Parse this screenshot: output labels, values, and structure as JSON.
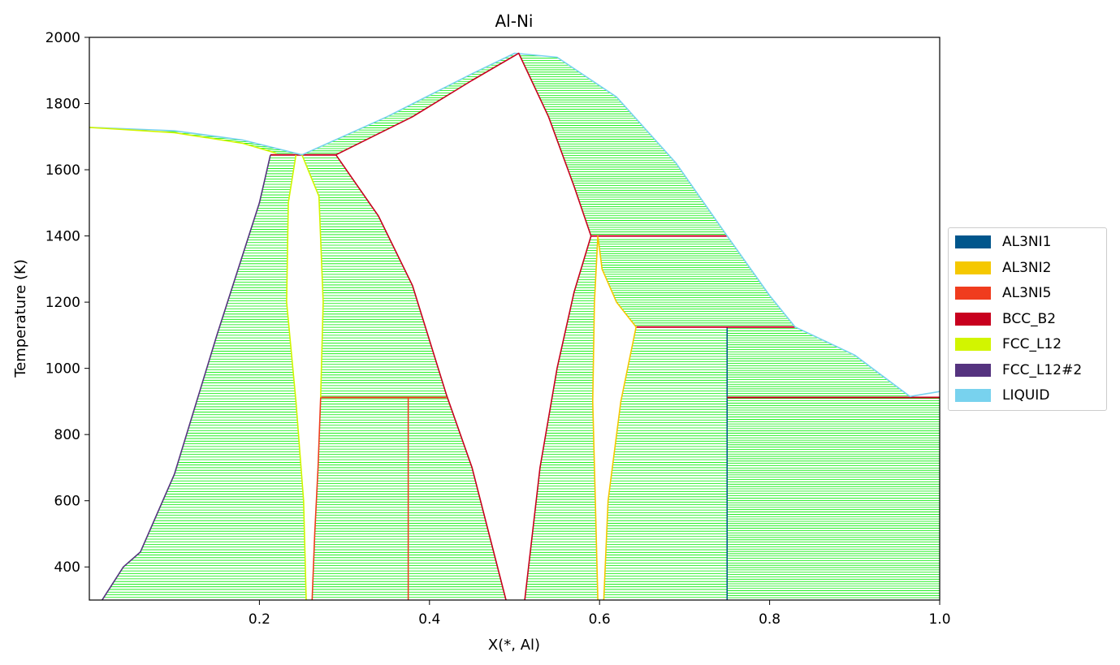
{
  "chart_data": {
    "type": "phase-diagram",
    "title": "Al-Ni",
    "xlabel": "X(*, Al)",
    "ylabel": "Temperature (K)",
    "xlim": [
      0.0,
      1.0
    ],
    "ylim": [
      300,
      2000
    ],
    "xticks": [
      0.2,
      0.4,
      0.6,
      0.8,
      1.0
    ],
    "xtick_labels": [
      "0.2",
      "0.4",
      "0.6",
      "0.8",
      "1.0"
    ],
    "yticks": [
      400,
      600,
      800,
      1000,
      1200,
      1400,
      1600,
      1800,
      2000
    ],
    "ytick_labels": [
      "400",
      "600",
      "800",
      "1000",
      "1200",
      "1400",
      "1600",
      "1800",
      "2000"
    ],
    "grid": false,
    "legend_position": "right",
    "tieline_color": "#00ee00",
    "legend": [
      {
        "name": "AL3NI1",
        "color": "#00568c"
      },
      {
        "name": "AL3NI2",
        "color": "#f5c800"
      },
      {
        "name": "AL3NI5",
        "color": "#f03c1e"
      },
      {
        "name": "BCC_B2",
        "color": "#c8001e"
      },
      {
        "name": "FCC_L12",
        "color": "#d2f500"
      },
      {
        "name": "FCC_L12#2",
        "color": "#55337f"
      },
      {
        "name": "LIQUID",
        "color": "#78d2ee"
      }
    ],
    "boundaries": [
      {
        "phase": "LIQUID",
        "points": [
          [
            0.0,
            1728
          ],
          [
            0.1,
            1718
          ],
          [
            0.18,
            1690
          ],
          [
            0.25,
            1645
          ]
        ]
      },
      {
        "phase": "FCC_L12",
        "points": [
          [
            0.0,
            1728
          ],
          [
            0.1,
            1712
          ],
          [
            0.18,
            1680
          ],
          [
            0.22,
            1650
          ]
        ]
      },
      {
        "phase": "FCC_L12#2",
        "points": [
          [
            0.015,
            300
          ],
          [
            0.04,
            400
          ],
          [
            0.06,
            445
          ],
          [
            0.1,
            680
          ],
          [
            0.15,
            1100
          ],
          [
            0.2,
            1500
          ],
          [
            0.213,
            1645
          ]
        ]
      },
      {
        "phase": "FCC_L12",
        "points": [
          [
            0.243,
            1645
          ],
          [
            0.234,
            1500
          ],
          [
            0.232,
            1200
          ],
          [
            0.243,
            900
          ],
          [
            0.252,
            600
          ],
          [
            0.255,
            300
          ]
        ]
      },
      {
        "phase": "FCC_L12",
        "points": [
          [
            0.25,
            1645
          ],
          [
            0.27,
            1520
          ],
          [
            0.275,
            1200
          ],
          [
            0.272,
            912
          ]
        ]
      },
      {
        "phase": "AL3NI5",
        "points": [
          [
            0.272,
            912
          ],
          [
            0.269,
            700
          ],
          [
            0.265,
            500
          ],
          [
            0.262,
            300
          ]
        ]
      },
      {
        "phase": "BCC_B2",
        "points": [
          [
            0.29,
            1645
          ],
          [
            0.34,
            1460
          ],
          [
            0.38,
            1250
          ],
          [
            0.42,
            920
          ],
          [
            0.45,
            700
          ],
          [
            0.47,
            500
          ],
          [
            0.49,
            300
          ]
        ]
      },
      {
        "phase": "LIQUID",
        "points": [
          [
            0.25,
            1645
          ],
          [
            0.35,
            1760
          ],
          [
            0.45,
            1890
          ],
          [
            0.5,
            1952
          ],
          [
            0.55,
            1940
          ],
          [
            0.62,
            1820
          ],
          [
            0.69,
            1620
          ],
          [
            0.75,
            1400
          ],
          [
            0.8,
            1220
          ],
          [
            0.83,
            1125
          ],
          [
            0.9,
            1040
          ],
          [
            0.965,
            915
          ],
          [
            1.0,
            930
          ]
        ]
      },
      {
        "phase": "BCC_B2",
        "points": [
          [
            0.29,
            1645
          ],
          [
            0.38,
            1760
          ],
          [
            0.45,
            1870
          ],
          [
            0.505,
            1952
          ],
          [
            0.54,
            1760
          ],
          [
            0.57,
            1550
          ],
          [
            0.59,
            1400
          ]
        ]
      },
      {
        "phase": "BCC_B2",
        "points": [
          [
            0.512,
            300
          ],
          [
            0.53,
            700
          ],
          [
            0.55,
            1000
          ],
          [
            0.57,
            1230
          ],
          [
            0.59,
            1400
          ]
        ]
      },
      {
        "phase": "AL3NI2",
        "points": [
          [
            0.598,
            1400
          ],
          [
            0.594,
            1200
          ],
          [
            0.592,
            900
          ],
          [
            0.595,
            600
          ],
          [
            0.598,
            300
          ]
        ]
      },
      {
        "phase": "AL3NI2",
        "points": [
          [
            0.598,
            1400
          ],
          [
            0.603,
            1300
          ],
          [
            0.62,
            1200
          ],
          [
            0.643,
            1125
          ],
          [
            0.625,
            900
          ],
          [
            0.61,
            600
          ],
          [
            0.605,
            300
          ]
        ]
      }
    ],
    "invariant_lines": [
      {
        "phase": "BCC_B2",
        "T": 1645,
        "x": [
          0.213,
          0.29
        ]
      },
      {
        "phase": "BCC_B2",
        "T": 1400,
        "x": [
          0.59,
          0.75
        ]
      },
      {
        "phase": "BCC_B2",
        "T": 1125,
        "x": [
          0.643,
          0.83
        ]
      },
      {
        "phase": "AL3NI5",
        "T": 912,
        "x": [
          0.272,
          0.42
        ]
      },
      {
        "phase": "BCC_B2",
        "T": 912,
        "x": [
          0.75,
          1.0
        ]
      }
    ],
    "compound_lines": [
      {
        "phase": "AL3NI5",
        "x": 0.375,
        "T": [
          300,
          912
        ]
      },
      {
        "phase": "AL3NI1",
        "x": 0.75,
        "T": [
          300,
          1125
        ]
      }
    ],
    "two_phase_regions": [
      {
        "left": [
          [
            0.0,
            1728
          ],
          [
            0.1,
            1712
          ],
          [
            0.18,
            1680
          ],
          [
            0.22,
            1650
          ]
        ],
        "right": [
          [
            0.0,
            1728
          ],
          [
            0.1,
            1718
          ],
          [
            0.18,
            1690
          ],
          [
            0.25,
            1645
          ]
        ],
        "tmin": 1650,
        "tmax": 1720,
        "step": 5
      },
      {
        "left": [
          [
            0.015,
            300
          ],
          [
            0.04,
            400
          ],
          [
            0.06,
            445
          ],
          [
            0.1,
            680
          ],
          [
            0.15,
            1100
          ],
          [
            0.2,
            1500
          ],
          [
            0.213,
            1645
          ]
        ],
        "right": [
          [
            0.255,
            300
          ],
          [
            0.252,
            600
          ],
          [
            0.243,
            900
          ],
          [
            0.232,
            1200
          ],
          [
            0.234,
            1500
          ],
          [
            0.243,
            1645
          ]
        ],
        "tmin": 300,
        "tmax": 1640,
        "step": 8
      },
      {
        "left": [
          [
            0.262,
            300
          ],
          [
            0.265,
            500
          ],
          [
            0.269,
            700
          ],
          [
            0.272,
            912
          ],
          [
            0.275,
            1200
          ],
          [
            0.27,
            1520
          ],
          [
            0.25,
            1645
          ]
        ],
        "right": [
          [
            0.49,
            300
          ],
          [
            0.47,
            500
          ],
          [
            0.45,
            700
          ],
          [
            0.42,
            920
          ],
          [
            0.38,
            1250
          ],
          [
            0.34,
            1460
          ],
          [
            0.29,
            1645
          ]
        ],
        "tmin": 300,
        "tmax": 1640,
        "step": 8
      },
      {
        "left": [
          [
            0.25,
            1645
          ],
          [
            0.35,
            1760
          ],
          [
            0.45,
            1890
          ],
          [
            0.5,
            1952
          ]
        ],
        "right": [
          [
            0.29,
            1645
          ],
          [
            0.38,
            1760
          ],
          [
            0.45,
            1870
          ],
          [
            0.505,
            1952
          ]
        ],
        "tmin": 1650,
        "tmax": 1945,
        "step": 7
      },
      {
        "left": [
          [
            0.59,
            1400
          ],
          [
            0.57,
            1550
          ],
          [
            0.54,
            1760
          ],
          [
            0.505,
            1952
          ]
        ],
        "right": [
          [
            0.75,
            1400
          ],
          [
            0.69,
            1620
          ],
          [
            0.62,
            1820
          ],
          [
            0.55,
            1940
          ],
          [
            0.5,
            1952
          ]
        ],
        "tmin": 1405,
        "tmax": 1945,
        "step": 7
      },
      {
        "left": [
          [
            0.512,
            300
          ],
          [
            0.53,
            700
          ],
          [
            0.55,
            1000
          ],
          [
            0.57,
            1230
          ],
          [
            0.59,
            1400
          ]
        ],
        "right": [
          [
            0.598,
            300
          ],
          [
            0.595,
            600
          ],
          [
            0.592,
            900
          ],
          [
            0.594,
            1200
          ],
          [
            0.598,
            1400
          ]
        ],
        "tmin": 300,
        "tmax": 1395,
        "step": 8
      },
      {
        "left": [
          [
            0.643,
            1125
          ],
          [
            0.62,
            1200
          ],
          [
            0.603,
            1300
          ],
          [
            0.598,
            1400
          ]
        ],
        "right": [
          [
            0.83,
            1125
          ],
          [
            0.8,
            1220
          ],
          [
            0.75,
            1400
          ]
        ],
        "tmin": 1130,
        "tmax": 1395,
        "step": 7
      },
      {
        "left": [
          [
            0.605,
            300
          ],
          [
            0.61,
            600
          ],
          [
            0.625,
            900
          ],
          [
            0.643,
            1125
          ]
        ],
        "right": [
          [
            0.75,
            300
          ],
          [
            0.75,
            1125
          ]
        ],
        "tmin": 300,
        "tmax": 1120,
        "step": 8
      },
      {
        "left": [
          [
            0.75,
            912
          ],
          [
            0.75,
            1125
          ]
        ],
        "right": [
          [
            0.965,
            915
          ],
          [
            0.9,
            1040
          ],
          [
            0.83,
            1125
          ]
        ],
        "tmin": 917,
        "tmax": 1120,
        "step": 7
      },
      {
        "left": [
          [
            0.75,
            300
          ],
          [
            0.75,
            912
          ]
        ],
        "right": [
          [
            1.0,
            300
          ],
          [
            1.0,
            912
          ]
        ],
        "tmin": 300,
        "tmax": 910,
        "step": 7
      }
    ]
  }
}
